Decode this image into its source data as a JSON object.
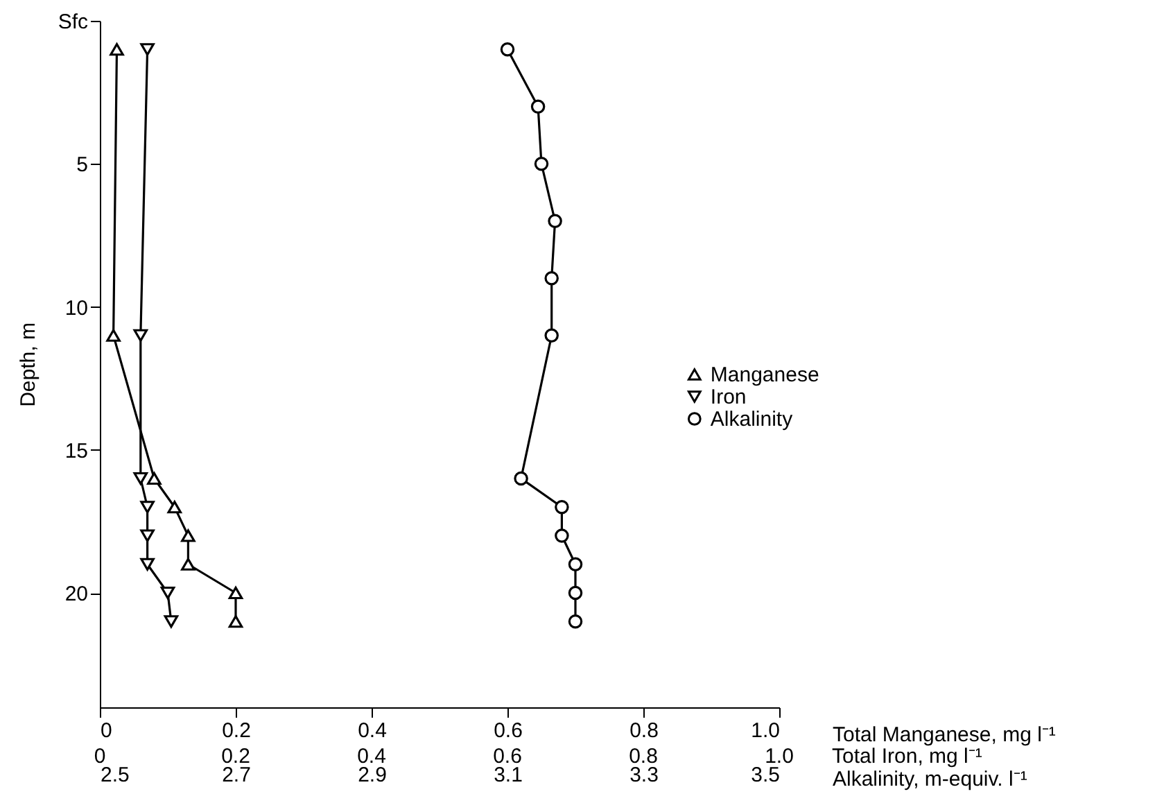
{
  "chart_data": {
    "type": "line",
    "ylabel": "Depth, m",
    "ylim": [
      24,
      0
    ],
    "yticks": [
      {
        "value": 0,
        "label": "Sfc"
      },
      5,
      10,
      15,
      20
    ],
    "xlim": [
      0,
      1.0
    ],
    "xticks": [
      0,
      0.2,
      0.4,
      0.6,
      0.8,
      {
        "value": 1.0,
        "label": "1.0"
      }
    ],
    "xlabel": "Total Manganese, mg l⁻¹",
    "annotations": [
      "0",
      "0.2",
      "0.4",
      "0.6",
      "0.8",
      "1.0",
      "Total Iron, mg l⁻¹"
    ],
    "x2lim": [
      2.5,
      3.5
    ],
    "x2ticks": [
      2.5,
      2.7,
      2.9,
      3.1,
      3.3,
      3.5
    ],
    "x2label": "Alkalinity, m-equiv. l⁻¹",
    "grid": false,
    "legend": "right",
    "series": [
      {
        "name": "Manganese",
        "color": "#000000",
        "marker": "triangle",
        "x": [
          0.025,
          0.02,
          0.08,
          0.11,
          0.13,
          0.13,
          0.2,
          0.2
        ],
        "values": [
          1,
          11,
          16,
          17,
          18,
          19,
          20,
          21
        ]
      },
      {
        "name": "Iron",
        "color": "#000000",
        "marker": "triangle-down",
        "x": [
          0.07,
          0.06,
          0.06,
          0.07,
          0.07,
          0.07,
          0.1,
          0.105
        ],
        "values": [
          1,
          11,
          16,
          17,
          18,
          19,
          20,
          21
        ]
      },
      {
        "name": "Alkalinity",
        "color": "#000000",
        "marker": "circle",
        "axis": "x2",
        "x": [
          3.1,
          3.145,
          3.15,
          3.17,
          3.165,
          3.165,
          3.12,
          3.18,
          3.18,
          3.2,
          3.2,
          3.2
        ],
        "values": [
          1,
          3,
          5,
          7,
          9,
          11,
          16,
          17,
          18,
          19,
          20,
          21
        ]
      }
    ]
  }
}
